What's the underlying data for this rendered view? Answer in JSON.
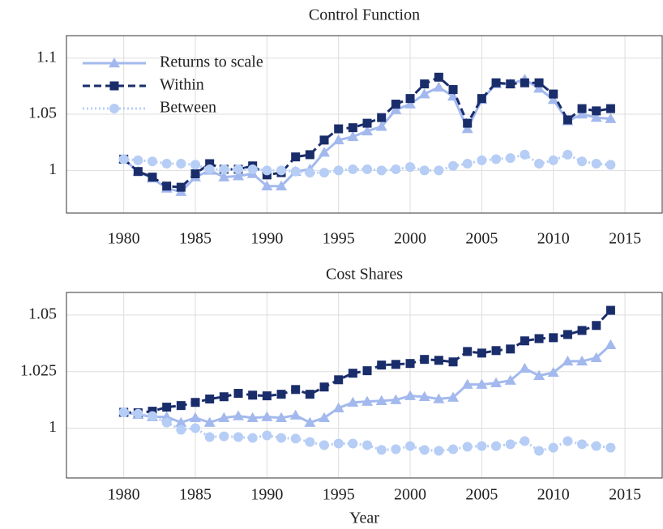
{
  "chart_data": [
    {
      "type": "line",
      "title": "Control Function",
      "x": [
        1980,
        1981,
        1982,
        1983,
        1984,
        1985,
        1986,
        1987,
        1988,
        1989,
        1990,
        1991,
        1992,
        1993,
        1994,
        1995,
        1996,
        1997,
        1998,
        1999,
        2000,
        2001,
        2002,
        2003,
        2004,
        2005,
        2006,
        2007,
        2008,
        2009,
        2010,
        2011,
        2012,
        2013,
        2014
      ],
      "series": [
        {
          "name": "Returns to scale",
          "color": "#a3b9ee",
          "linestyle": "solid",
          "marker": "triangle",
          "values": [
            1.01,
            0.999,
            0.993,
            0.984,
            0.981,
            0.994,
            1.0,
            0.994,
            0.995,
            0.997,
            0.986,
            0.986,
            0.999,
            1.001,
            1.016,
            1.027,
            1.03,
            1.035,
            1.039,
            1.054,
            1.059,
            1.068,
            1.074,
            1.066,
            1.037,
            1.063,
            1.077,
            1.077,
            1.081,
            1.073,
            1.063,
            1.044,
            1.05,
            1.047,
            1.046
          ]
        },
        {
          "name": "Within",
          "color": "#1a2d6b",
          "linestyle": "dashed",
          "marker": "square",
          "values": [
            1.01,
            0.999,
            0.994,
            0.986,
            0.985,
            0.997,
            1.006,
            1.001,
            1.001,
            1.004,
            0.996,
            0.998,
            1.012,
            1.014,
            1.027,
            1.037,
            1.038,
            1.042,
            1.047,
            1.059,
            1.064,
            1.077,
            1.083,
            1.072,
            1.042,
            1.064,
            1.078,
            1.077,
            1.078,
            1.078,
            1.068,
            1.045,
            1.055,
            1.053,
            1.055
          ]
        },
        {
          "name": "Between",
          "color": "#b6cdf5",
          "linestyle": "dotted",
          "marker": "circle",
          "values": [
            1.01,
            1.009,
            1.008,
            1.006,
            1.006,
            1.005,
            1.001,
            1.001,
            1.001,
            1.001,
            1.0,
            1.0,
            0.999,
            0.998,
            0.998,
            1.0,
            1.001,
            1.001,
            1.0,
            1.001,
            1.003,
            1.0,
            1.0,
            1.004,
            1.006,
            1.009,
            1.01,
            1.011,
            1.014,
            1.006,
            1.009,
            1.014,
            1.008,
            1.006,
            1.005
          ]
        }
      ],
      "xlim": [
        1976,
        2017.6
      ],
      "xticks": [
        1980,
        1985,
        1990,
        1995,
        2000,
        2005,
        2010,
        2015
      ],
      "ylim": [
        0.962,
        1.12
      ],
      "yticks": [
        1,
        1.05,
        1.1
      ],
      "grid": true,
      "legend": "upper left"
    },
    {
      "type": "line",
      "title": "Cost Shares",
      "xlabel": "Year",
      "x": [
        1980,
        1981,
        1982,
        1983,
        1984,
        1985,
        1986,
        1987,
        1988,
        1989,
        1990,
        1991,
        1992,
        1993,
        1994,
        1995,
        1996,
        1997,
        1998,
        1999,
        2000,
        2001,
        2002,
        2003,
        2004,
        2005,
        2006,
        2007,
        2008,
        2009,
        2010,
        2011,
        2012,
        2013,
        2014
      ],
      "series": [
        {
          "color": "#a3b9ee",
          "linestyle": "solid",
          "marker": "triangle",
          "values": [
            1.007,
            1.006,
            1.005,
            1.005,
            1.0025,
            1.0046,
            1.0025,
            1.0046,
            1.0054,
            1.0046,
            1.005,
            1.0046,
            1.0057,
            1.0025,
            1.0046,
            1.0089,
            1.0114,
            1.0118,
            1.0121,
            1.0125,
            1.0143,
            1.0139,
            1.0129,
            1.0136,
            1.0193,
            1.0193,
            1.02,
            1.0211,
            1.0264,
            1.0232,
            1.0246,
            1.0296,
            1.0296,
            1.0311,
            1.0368
          ]
        },
        {
          "color": "#1a2d6b",
          "linestyle": "dashed",
          "marker": "square",
          "values": [
            1.007,
            1.0068,
            1.0075,
            1.0093,
            1.01,
            1.0114,
            1.0129,
            1.0139,
            1.0154,
            1.0146,
            1.0143,
            1.015,
            1.0171,
            1.015,
            1.0182,
            1.0214,
            1.0243,
            1.0254,
            1.0279,
            1.0282,
            1.0286,
            1.0304,
            1.03,
            1.0293,
            1.0339,
            1.0332,
            1.0343,
            1.035,
            1.0386,
            1.0396,
            1.04,
            1.0414,
            1.0432,
            1.0454,
            1.0521
          ]
        },
        {
          "color": "#b6cdf5",
          "linestyle": "dotted",
          "marker": "circle",
          "values": [
            1.007,
            1.0064,
            1.0054,
            1.0025,
            0.9993,
            1.0,
            0.9961,
            0.9964,
            0.9961,
            0.9957,
            0.9968,
            0.9957,
            0.9954,
            0.9939,
            0.9925,
            0.9932,
            0.9932,
            0.9925,
            0.9904,
            0.9907,
            0.9921,
            0.9904,
            0.99,
            0.9907,
            0.9918,
            0.9921,
            0.9921,
            0.9929,
            0.9943,
            0.99,
            0.9914,
            0.9943,
            0.9929,
            0.9921,
            0.9914
          ]
        }
      ],
      "xlim": [
        1976,
        2017.6
      ],
      "xticks": [
        1980,
        1985,
        1990,
        1995,
        2000,
        2005,
        2010,
        2015
      ],
      "ylim": [
        0.978,
        1.06
      ],
      "yticks": [
        1,
        1.025,
        1.05
      ],
      "grid": true
    }
  ]
}
